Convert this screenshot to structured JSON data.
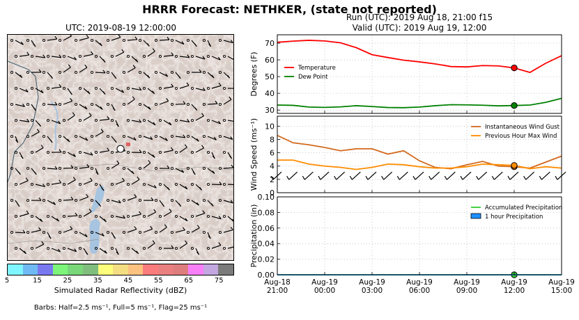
{
  "suptitle": "HRRR Forecast: NETHKER, (state not reported)",
  "map": {
    "title": "UTC: 2019-08-19 12:00:00"
  },
  "run_title": "Run (UTC): 2019 Aug 18, 21:00 f15",
  "valid_title": "Valid (UTC): 2019 Aug 19, 12:00",
  "colorbar": {
    "label": "Simulated Radar Reflectivity (dBZ)",
    "ticks": [
      "5",
      "15",
      "25",
      "35",
      "45",
      "55",
      "65",
      "75"
    ],
    "colors": [
      "#7ff5ff",
      "#6fbaf3",
      "#7a78ef",
      "#7cf57a",
      "#79d779",
      "#7fbe7d",
      "#fdfd7c",
      "#f5dd82",
      "#fbc27f",
      "#fb7c7c",
      "#ea7f7f",
      "#de7d7d",
      "#f87ff8",
      "#c3a7e0",
      "#7b7b7b"
    ]
  },
  "barbs_note": "Barbs: Half=2.5 ms⁻¹, Full=5 ms⁻¹, Flag=25 ms⁻¹",
  "chart_data": [
    {
      "type": "line",
      "panel": "temperature",
      "ylabel": "Degrees (F)",
      "ylim": [
        28,
        75
      ],
      "yticks": [
        "30",
        "40",
        "50",
        "60",
        "70"
      ],
      "grid": true,
      "legend_position": "left",
      "x": [
        0,
        1,
        2,
        3,
        4,
        5,
        6,
        7,
        8,
        9,
        10,
        11,
        12,
        13,
        14,
        15,
        16,
        17,
        18
      ],
      "series": [
        {
          "name": "Temperature",
          "color": "#ff0000",
          "values": [
            70.5,
            71.2,
            71.7,
            71.3,
            70.2,
            67.3,
            63.1,
            61.4,
            59.8,
            58.8,
            57.6,
            56.0,
            55.8,
            56.6,
            56.4,
            55.2,
            52.5,
            58.0,
            62.5
          ],
          "marker_index": 15
        },
        {
          "name": "Dew Point",
          "color": "#008000",
          "values": [
            33.0,
            32.8,
            31.8,
            31.6,
            31.9,
            32.6,
            32.1,
            31.5,
            31.4,
            31.8,
            32.6,
            33.2,
            33.1,
            32.9,
            32.5,
            32.7,
            33.0,
            34.6,
            37.0
          ],
          "marker_index": 15
        }
      ]
    },
    {
      "type": "line",
      "panel": "wind",
      "ylabel": "Wind Speed (ms⁻¹)",
      "ylim": [
        0,
        11.5
      ],
      "yticks": [
        "0",
        "2",
        "4",
        "6",
        "8",
        "10"
      ],
      "grid": true,
      "legend_position": "top-right",
      "x": [
        0,
        1,
        2,
        3,
        4,
        5,
        6,
        7,
        8,
        9,
        10,
        11,
        12,
        13,
        14,
        15,
        16,
        17,
        18
      ],
      "series": [
        {
          "name": "Instantaneous Wind Gust",
          "color": "#d2691e",
          "values": [
            8.6,
            7.5,
            7.2,
            6.8,
            6.3,
            6.6,
            6.6,
            5.8,
            6.3,
            4.8,
            3.8,
            3.6,
            4.2,
            4.7,
            4.0,
            3.9,
            3.7,
            4.6,
            5.5
          ],
          "marker_index": 15
        },
        {
          "name": "Previous Hour Max Wind",
          "color": "#ff8c00",
          "values": [
            4.9,
            4.9,
            4.3,
            4.0,
            3.8,
            3.5,
            3.8,
            4.3,
            4.2,
            3.9,
            3.7,
            3.7,
            3.9,
            4.3,
            4.2,
            4.1,
            3.6,
            3.9,
            3.7
          ],
          "marker_index": 15
        }
      ]
    },
    {
      "type": "line",
      "panel": "precipitation",
      "ylabel": "Precipitation (in)",
      "ylim": [
        0,
        0.1
      ],
      "yticks": [
        "0.00",
        "0.02",
        "0.04",
        "0.06",
        "0.08",
        "0.10"
      ],
      "grid": true,
      "legend_position": "top-right",
      "x": [
        0,
        1,
        2,
        3,
        4,
        5,
        6,
        7,
        8,
        9,
        10,
        11,
        12,
        13,
        14,
        15,
        16,
        17,
        18
      ],
      "series": [
        {
          "name": "Accumulated Precipitation",
          "color": "#32cd32",
          "values": [
            0,
            0,
            0,
            0,
            0,
            0,
            0,
            0,
            0,
            0,
            0,
            0,
            0,
            0,
            0,
            0,
            0,
            0,
            0
          ],
          "marker_index": 15
        },
        {
          "name": "1 hour Precipitation",
          "color": "#1e90ff",
          "values": [
            0,
            0,
            0,
            0,
            0,
            0,
            0,
            0,
            0,
            0,
            0,
            0,
            0,
            0,
            0,
            0,
            0,
            0,
            0
          ]
        }
      ],
      "xtick_labels": [
        [
          "Aug-18",
          "21:00"
        ],
        [
          "Aug-19",
          "00:00"
        ],
        [
          "Aug-19",
          "03:00"
        ],
        [
          "Aug-19",
          "06:00"
        ],
        [
          "Aug-19",
          "09:00"
        ],
        [
          "Aug-19",
          "12:00"
        ],
        [
          "Aug-19",
          "15:00"
        ]
      ]
    }
  ]
}
